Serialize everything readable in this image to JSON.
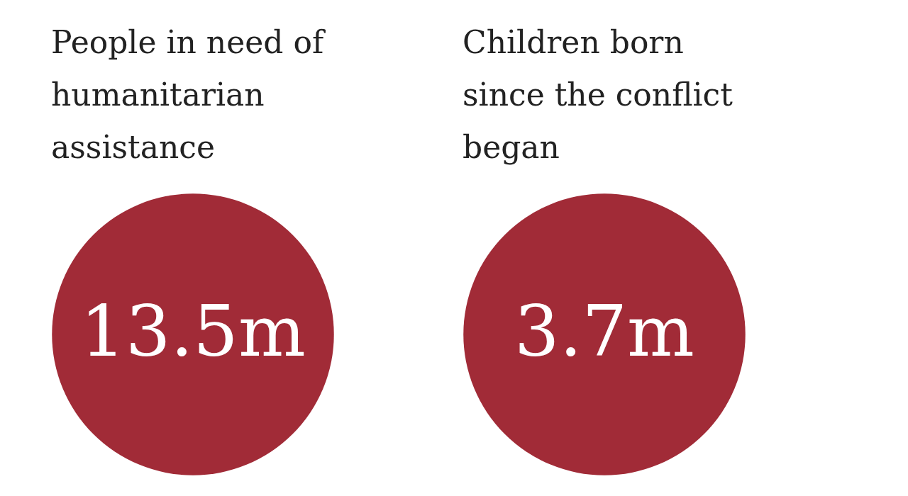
{
  "chart_data": [
    {
      "type": "other",
      "title": "People in need of humanitarian assistance",
      "values": [
        13.5
      ],
      "value_labels": [
        "13.5m"
      ],
      "colors": [
        "#a12b37"
      ]
    },
    {
      "type": "other",
      "title": "Children born since the conflict began",
      "values": [
        3.7
      ],
      "value_labels": [
        "3.7m"
      ],
      "colors": [
        "#a12b37"
      ]
    }
  ]
}
